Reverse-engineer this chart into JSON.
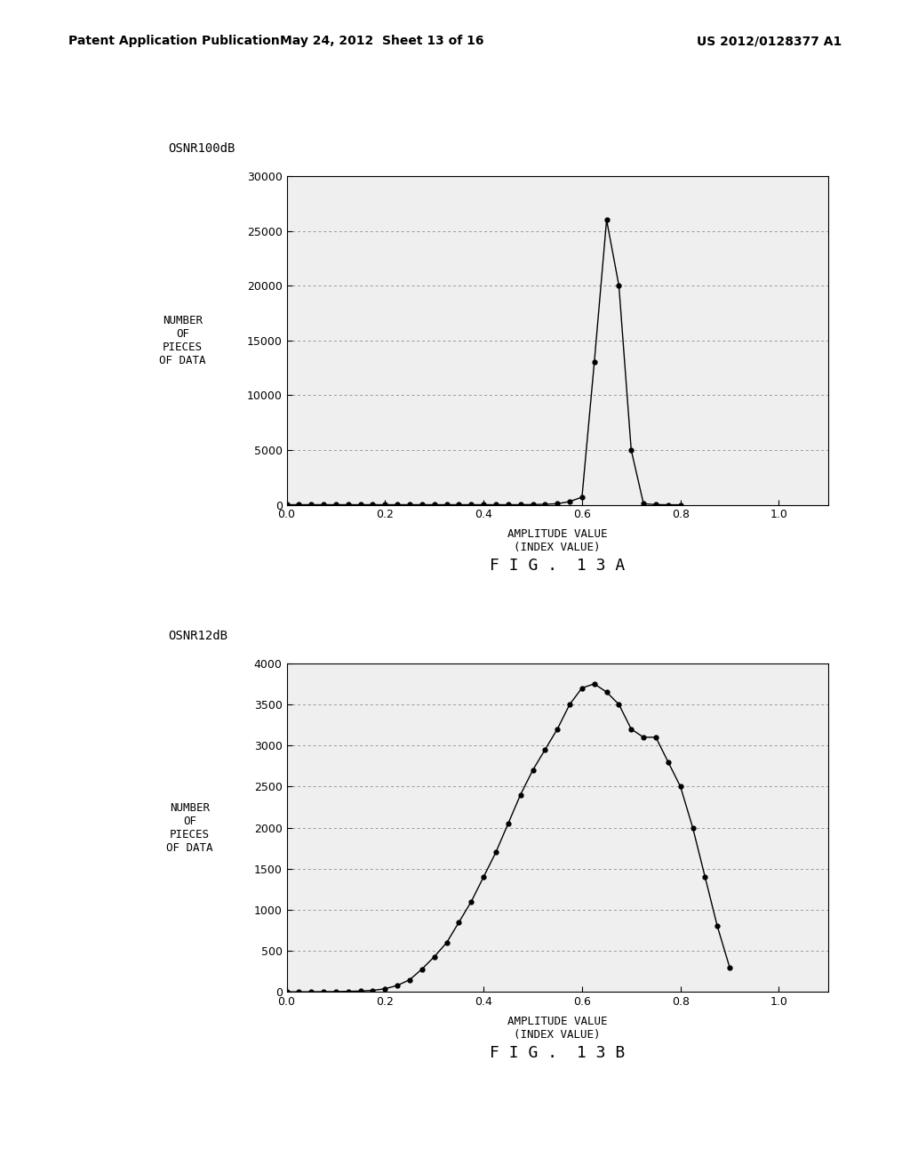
{
  "header_left": "Patent Application Publication",
  "header_mid": "May 24, 2012  Sheet 13 of 16",
  "header_right": "US 2012/0128377 A1",
  "fig13a": {
    "label": "OSNR100dB",
    "caption": "F I G .  1 3 A",
    "ylabel_lines": [
      "NUMBER",
      "OF",
      "PIECES",
      "OF DATA"
    ],
    "xlabel_line1": "AMPLITUDE VALUE",
    "xlabel_line2": "(INDEX VALUE)",
    "xlim": [
      0,
      1.1
    ],
    "ylim": [
      0,
      30000
    ],
    "xticks": [
      0,
      0.2,
      0.4,
      0.6,
      0.8,
      1
    ],
    "yticks": [
      0,
      5000,
      10000,
      15000,
      20000,
      25000,
      30000
    ],
    "x": [
      0.0,
      0.025,
      0.05,
      0.075,
      0.1,
      0.125,
      0.15,
      0.175,
      0.2,
      0.225,
      0.25,
      0.275,
      0.3,
      0.325,
      0.35,
      0.375,
      0.4,
      0.425,
      0.45,
      0.475,
      0.5,
      0.525,
      0.55,
      0.575,
      0.6,
      0.625,
      0.65,
      0.675,
      0.7,
      0.725,
      0.75,
      0.775,
      0.8
    ],
    "y": [
      10,
      10,
      10,
      10,
      10,
      10,
      10,
      10,
      10,
      10,
      10,
      10,
      10,
      10,
      10,
      10,
      10,
      10,
      10,
      10,
      20,
      50,
      100,
      300,
      700,
      13000,
      26000,
      20000,
      5000,
      100,
      20,
      5,
      2
    ]
  },
  "fig13b": {
    "label": "OSNR12dB",
    "caption": "F I G .  1 3 B",
    "ylabel_lines": [
      "NUMBER",
      "OF",
      "PIECES",
      "OF DATA"
    ],
    "xlabel_line1": "AMPLITUDE VALUE",
    "xlabel_line2": "(INDEX VALUE)",
    "xlim": [
      0,
      1.1
    ],
    "ylim": [
      0,
      4000
    ],
    "xticks": [
      0,
      0.2,
      0.4,
      0.6,
      0.8,
      1
    ],
    "yticks": [
      0,
      500,
      1000,
      1500,
      2000,
      2500,
      3000,
      3500,
      4000
    ],
    "x": [
      0.0,
      0.025,
      0.05,
      0.075,
      0.1,
      0.125,
      0.15,
      0.175,
      0.2,
      0.225,
      0.25,
      0.275,
      0.3,
      0.325,
      0.35,
      0.375,
      0.4,
      0.425,
      0.45,
      0.475,
      0.5,
      0.525,
      0.55,
      0.575,
      0.6,
      0.625,
      0.65,
      0.675,
      0.7,
      0.725,
      0.75,
      0.775,
      0.8,
      0.825,
      0.85,
      0.875,
      0.9
    ],
    "y": [
      2,
      2,
      3,
      4,
      5,
      8,
      12,
      20,
      40,
      80,
      150,
      280,
      430,
      600,
      850,
      1100,
      1400,
      1700,
      2050,
      2400,
      2700,
      2950,
      3200,
      3500,
      3700,
      3750,
      3650,
      3500,
      3200,
      3100,
      3100,
      2800,
      2500,
      2000,
      1400,
      800,
      300
    ]
  },
  "background_color": "#ffffff",
  "plot_bg": "#efefef",
  "line_color": "#000000",
  "marker": "o",
  "markersize": 3.5,
  "linewidth": 1.0,
  "grid_color": "#999999",
  "grid_style": "dotted"
}
